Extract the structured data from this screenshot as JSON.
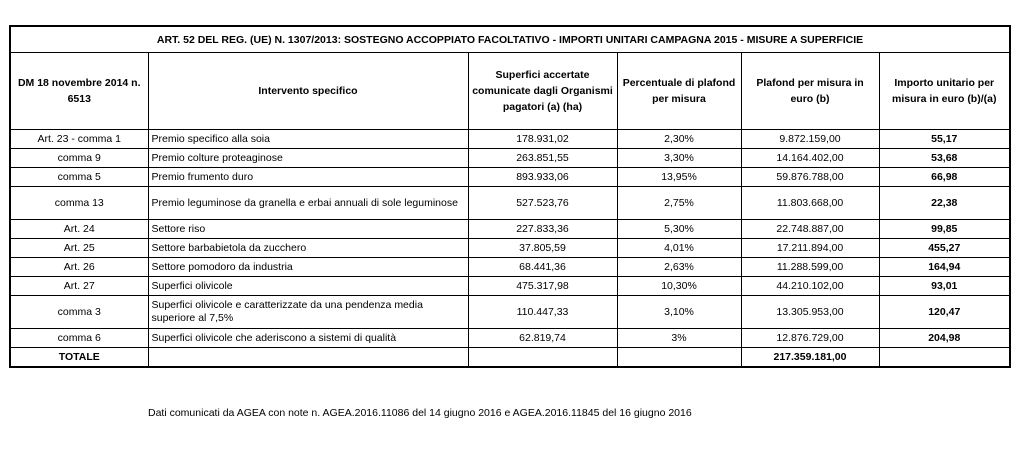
{
  "title": "ART. 52 DEL REG. (UE) N. 1307/2013: SOSTEGNO ACCOPPIATO FACOLTATIVO - IMPORTI UNITARI CAMPAGNA 2015 - MISURE A SUPERFICIE",
  "headers": {
    "ref": "DM 18 novembre 2014 n. 6513",
    "intervento": "Intervento specifico",
    "superfici": "Superfici accertate comunicate dagli Organismi pagatori (a) (ha)",
    "percentuale": "Percentuale di plafond per misura",
    "plafond": "Plafond per misura in euro (b)",
    "importo": "Importo unitario per misura in euro  (b)/(a)"
  },
  "rows": [
    {
      "ref": "Art. 23 - comma 1",
      "intervento": "Premio specifico alla soia",
      "superfici": "178.931,02",
      "percentuale": "2,30%",
      "plafond": "9.872.159,00",
      "importo": "55,17"
    },
    {
      "ref": "comma 9",
      "intervento": "Premio colture proteaginose",
      "superfici": "263.851,55",
      "percentuale": "3,30%",
      "plafond": "14.164.402,00",
      "importo": "53,68"
    },
    {
      "ref": "comma 5",
      "intervento": "Premio frumento duro",
      "superfici": "893.933,06",
      "percentuale": "13,95%",
      "plafond": "59.876.788,00",
      "importo": "66,98"
    },
    {
      "ref": "comma 13",
      "intervento": "Premio leguminose da granella e erbai annuali di sole leguminose",
      "superfici": "527.523,76",
      "percentuale": "2,75%",
      "plafond": "11.803.668,00",
      "importo": "22,38"
    },
    {
      "ref": "Art. 24",
      "intervento": "Settore riso",
      "superfici": "227.833,36",
      "percentuale": "5,30%",
      "plafond": "22.748.887,00",
      "importo": "99,85"
    },
    {
      "ref": "Art. 25",
      "intervento": "Settore barbabietola da zucchero",
      "superfici": "37.805,59",
      "percentuale": "4,01%",
      "plafond": "17.211.894,00",
      "importo": "455,27"
    },
    {
      "ref": "Art. 26",
      "intervento": "Settore pomodoro da industria",
      "superfici": "68.441,36",
      "percentuale": "2,63%",
      "plafond": "11.288.599,00",
      "importo": "164,94"
    },
    {
      "ref": "Art. 27",
      "intervento": "Superfici olivicole",
      "superfici": "475.317,98",
      "percentuale": "10,30%",
      "plafond": "44.210.102,00",
      "importo": "93,01"
    },
    {
      "ref": "comma 3",
      "intervento": "Superfici olivicole e caratterizzate da una pendenza media superiore al 7,5%",
      "superfici": "110.447,33",
      "percentuale": "3,10%",
      "plafond": "13.305.953,00",
      "importo": "120,47"
    },
    {
      "ref": "comma 6",
      "intervento": "Superfici olivicole che aderiscono a sistemi di qualità",
      "superfici": "62.819,74",
      "percentuale": "3%",
      "plafond": "12.876.729,00",
      "importo": "204,98"
    }
  ],
  "total": {
    "label": "TOTALE",
    "plafond": "217.359.181,00"
  },
  "footnote": "Dati comunicati da AGEA con note n. AGEA.2016.11086 del 14 giugno 2016 e AGEA.2016.11845 del 16 giugno 2016"
}
